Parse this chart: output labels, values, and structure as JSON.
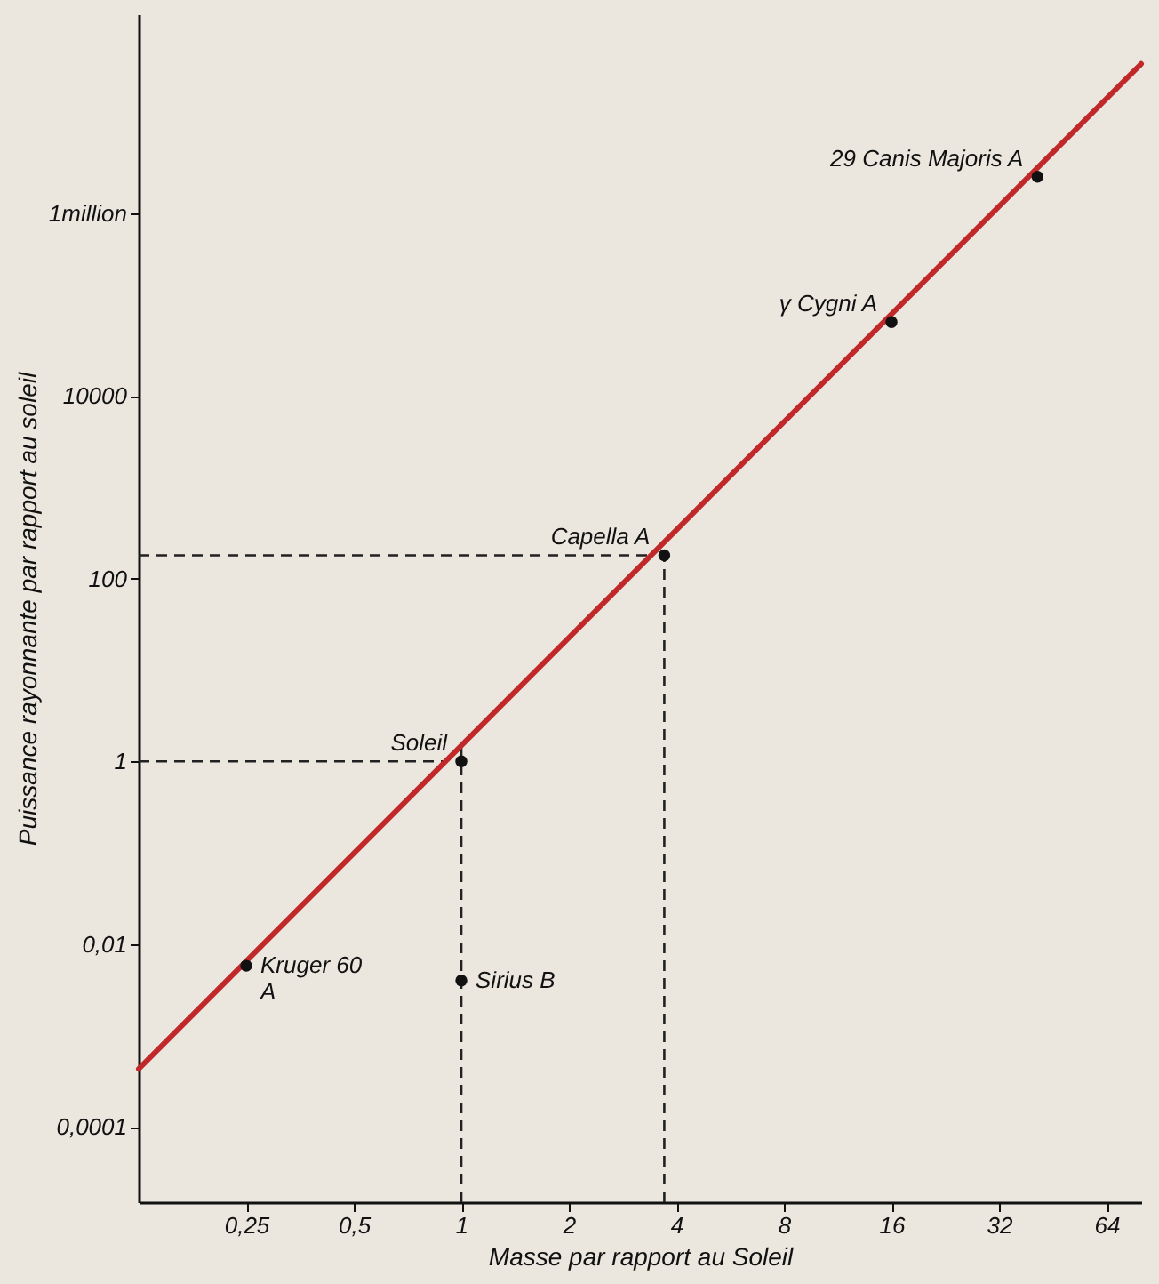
{
  "chart_data": {
    "type": "line",
    "xlabel": "Masse par rapport au Soleil",
    "ylabel": "Puissance rayonnante par rapport au soleil",
    "log": "xy",
    "grid": false,
    "legend": false,
    "xlim": [
      0.125,
      80
    ],
    "xticks": [
      {
        "value": 0.25,
        "label": "0,25"
      },
      {
        "value": 0.5,
        "label": "0,5"
      },
      1,
      2,
      4,
      8,
      16,
      32,
      64
    ],
    "ylim": [
      1.5e-05,
      150000000
    ],
    "yticks": [
      {
        "value": 0.0001,
        "label": "0,0001"
      },
      {
        "value": 0.01,
        "label": "0,01"
      },
      1,
      100,
      10000,
      {
        "value": 1000000,
        "label": "1million"
      }
    ],
    "series": [
      {
        "type": "line",
        "color": "#c0282a",
        "x": [
          0.125,
          80
        ],
        "values": [
          0.00043,
          43000000
        ]
      },
      {
        "type": "scatter",
        "color": "#111111",
        "marker": "circle",
        "x": [
          0.25,
          1,
          1,
          3.7,
          16,
          41
        ],
        "values": [
          0.0058,
          0.004,
          1,
          180,
          64000,
          2500000
        ]
      }
    ],
    "ref_lines": [
      {
        "axis": "x",
        "value": 1,
        "line_style": "dashed",
        "color": "#222222"
      },
      {
        "axis": "y",
        "value": 1,
        "line_style": "dashed",
        "color": "#222222"
      },
      {
        "axis": "x",
        "value": 3.7,
        "line_style": "dashed",
        "color": "#222222"
      },
      {
        "axis": "y",
        "value": 180,
        "line_style": "dashed",
        "color": "#222222"
      }
    ],
    "annotations": [
      {
        "text": "Kruger 60\nA",
        "x": 0.25,
        "y": 0.0058
      },
      {
        "text": "Sirius B",
        "x": 1,
        "y": 0.004
      },
      {
        "text": "Soleil",
        "x": 1,
        "y": 1
      },
      {
        "text": "Capella A",
        "x": 3.7,
        "y": 180
      },
      {
        "text": "γ Cygni A",
        "x": 16,
        "y": 64000
      },
      {
        "text": "29 Canis Majoris A",
        "x": 41,
        "y": 2500000
      }
    ]
  }
}
